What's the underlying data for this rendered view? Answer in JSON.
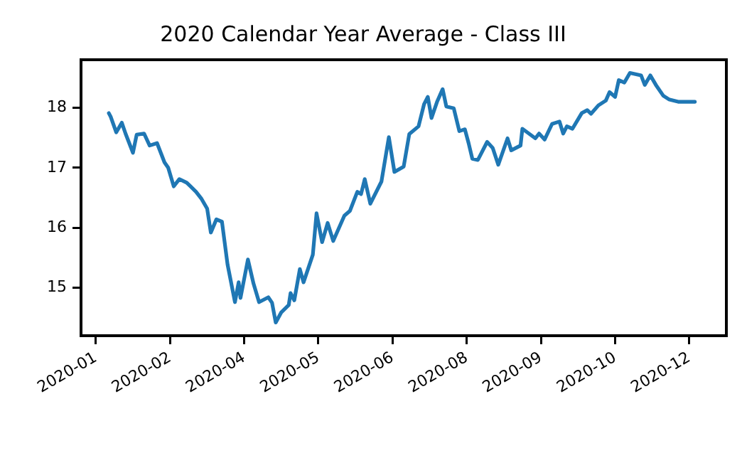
{
  "chart_data": {
    "type": "line",
    "title": "2020 Calendar Year Average - Class III",
    "x": [
      "2020-01-27",
      "2020-01-28",
      "2020-01-31",
      "2020-02-03",
      "2020-02-05",
      "2020-02-09",
      "2020-02-11",
      "2020-02-15",
      "2020-02-18",
      "2020-02-22",
      "2020-02-26",
      "2020-02-28",
      "2020-03-02",
      "2020-03-05",
      "2020-03-09",
      "2020-03-11",
      "2020-03-14",
      "2020-03-17",
      "2020-03-20",
      "2020-03-22",
      "2020-03-25",
      "2020-03-28",
      "2020-03-31",
      "2020-04-04",
      "2020-04-06",
      "2020-04-07",
      "2020-04-11",
      "2020-04-14",
      "2020-04-17",
      "2020-04-22",
      "2020-04-24",
      "2020-04-26",
      "2020-04-29",
      "2020-05-03",
      "2020-05-04",
      "2020-05-06",
      "2020-05-09",
      "2020-05-11",
      "2020-05-16",
      "2020-05-18",
      "2020-05-21",
      "2020-05-24",
      "2020-05-27",
      "2020-06-02",
      "2020-06-05",
      "2020-06-09",
      "2020-06-11",
      "2020-06-13",
      "2020-06-16",
      "2020-06-22",
      "2020-06-26",
      "2020-06-29",
      "2020-07-04",
      "2020-07-07",
      "2020-07-12",
      "2020-07-15",
      "2020-07-17",
      "2020-07-19",
      "2020-07-22",
      "2020-07-25",
      "2020-07-27",
      "2020-07-31",
      "2020-08-03",
      "2020-08-06",
      "2020-08-08",
      "2020-08-10",
      "2020-08-13",
      "2020-08-18",
      "2020-08-21",
      "2020-08-24",
      "2020-08-29",
      "2020-08-31",
      "2020-09-05",
      "2020-09-06",
      "2020-09-13",
      "2020-09-15",
      "2020-09-18",
      "2020-09-22",
      "2020-09-26",
      "2020-09-28",
      "2020-09-30",
      "2020-10-03",
      "2020-10-08",
      "2020-10-11",
      "2020-10-13",
      "2020-10-17",
      "2020-10-21",
      "2020-10-23",
      "2020-10-26",
      "2020-10-28",
      "2020-10-31",
      "2020-11-03",
      "2020-11-06",
      "2020-11-09",
      "2020-11-11",
      "2020-11-14",
      "2020-11-17",
      "2020-11-21",
      "2020-11-24",
      "2020-11-29",
      "2020-12-08"
    ],
    "series": [
      {
        "color": "#1f77b4",
        "values": [
          17.91,
          17.85,
          17.59,
          17.75,
          17.57,
          17.25,
          17.55,
          17.57,
          17.37,
          17.41,
          17.09,
          17.0,
          16.69,
          16.81,
          16.75,
          16.69,
          16.6,
          16.48,
          16.32,
          15.92,
          16.14,
          16.1,
          15.39,
          14.76,
          15.09,
          14.83,
          15.47,
          15.07,
          14.76,
          14.84,
          14.75,
          14.42,
          14.59,
          14.71,
          14.91,
          14.79,
          15.31,
          15.09,
          15.55,
          16.24,
          15.76,
          16.08,
          15.78,
          16.2,
          16.28,
          16.6,
          16.56,
          16.81,
          16.4,
          16.77,
          17.51,
          16.93,
          17.02,
          17.56,
          17.69,
          18.06,
          18.18,
          17.83,
          18.1,
          18.31,
          18.02,
          17.99,
          17.61,
          17.64,
          17.41,
          17.15,
          17.13,
          17.43,
          17.33,
          17.05,
          17.49,
          17.29,
          17.37,
          17.65,
          17.49,
          17.57,
          17.47,
          17.73,
          17.77,
          17.57,
          17.69,
          17.65,
          17.91,
          17.96,
          17.9,
          18.04,
          18.12,
          18.26,
          18.18,
          18.46,
          18.42,
          18.58,
          18.56,
          18.54,
          18.38,
          18.54,
          18.38,
          18.2,
          18.14,
          18.1,
          18.1
        ]
      }
    ],
    "xlim": [
      "2020-01-12",
      "2020-12-25"
    ],
    "xticks": [
      {
        "value": "2020-01-20",
        "label": "2020-01"
      },
      {
        "value": "2020-02-29",
        "label": "2020-02"
      },
      {
        "value": "2020-04-09",
        "label": "2020-04"
      },
      {
        "value": "2020-05-19",
        "label": "2020-05"
      },
      {
        "value": "2020-06-28",
        "label": "2020-06"
      },
      {
        "value": "2020-08-07",
        "label": "2020-08"
      },
      {
        "value": "2020-09-16",
        "label": "2020-09"
      },
      {
        "value": "2020-10-26",
        "label": "2020-10"
      },
      {
        "value": "2020-12-05",
        "label": "2020-12"
      }
    ],
    "ylim": [
      14.2,
      18.8
    ],
    "yticks": [
      15,
      16,
      17,
      18
    ],
    "grid": false,
    "legend": false,
    "marker": "none",
    "line_style": "solid"
  }
}
